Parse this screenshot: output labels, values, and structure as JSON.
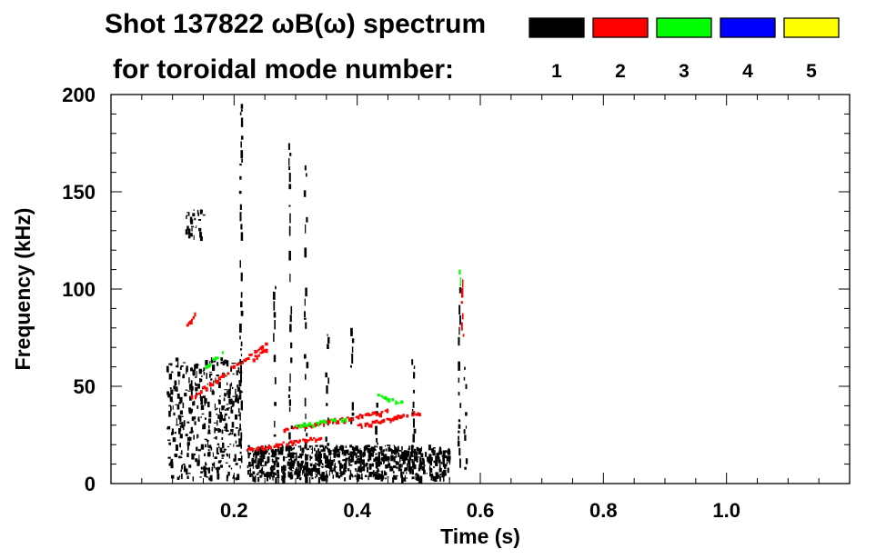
{
  "chart_data": {
    "type": "heatmap",
    "title": "Shot 137822 ωB(ω) spectrum",
    "subtitle": "for toroidal mode number:",
    "xlabel": "Time (s)",
    "ylabel": "Frequency (kHz)",
    "xlim": [
      0.0,
      1.2
    ],
    "ylim": [
      0,
      200
    ],
    "x_ticks": [
      {
        "value": 0.2,
        "label": "0.2"
      },
      {
        "value": 0.4,
        "label": "0.4"
      },
      {
        "value": 0.6,
        "label": "0.6"
      },
      {
        "value": 0.8,
        "label": "0.8"
      },
      {
        "value": 1.0,
        "label": "1.0"
      }
    ],
    "y_ticks": [
      {
        "value": 0,
        "label": "0"
      },
      {
        "value": 50,
        "label": "50"
      },
      {
        "value": 100,
        "label": "100"
      },
      {
        "value": 150,
        "label": "150"
      },
      {
        "value": 200,
        "label": "200"
      }
    ],
    "legend_position": "top-right",
    "series": [
      {
        "name": "1",
        "color": "#000000"
      },
      {
        "name": "2",
        "color": "#ff0000"
      },
      {
        "name": "3",
        "color": "#00ff00"
      },
      {
        "name": "4",
        "color": "#0000ff"
      },
      {
        "name": "5",
        "color": "#ffff00"
      }
    ],
    "features": [
      {
        "mode": "1",
        "kind": "patch",
        "t": [
          0.22,
          0.55
        ],
        "f": [
          3,
          20
        ],
        "density": 0.6
      },
      {
        "mode": "1",
        "kind": "patch",
        "t": [
          0.09,
          0.21
        ],
        "f": [
          3,
          65
        ],
        "density": 0.22
      },
      {
        "mode": "1",
        "kind": "patch",
        "t": [
          0.12,
          0.15
        ],
        "f": [
          127,
          141
        ],
        "density": 0.3
      },
      {
        "mode": "1",
        "kind": "vline",
        "t": 0.29,
        "f": [
          3,
          175
        ]
      },
      {
        "mode": "1",
        "kind": "vline",
        "t": 0.315,
        "f": [
          3,
          168
        ]
      },
      {
        "mode": "1",
        "kind": "vline",
        "t": 0.265,
        "f": [
          3,
          105
        ]
      },
      {
        "mode": "1",
        "kind": "vline",
        "t": 0.21,
        "f": [
          3,
          200
        ]
      },
      {
        "mode": "1",
        "kind": "vline",
        "t": 0.565,
        "f": [
          3,
          110
        ]
      },
      {
        "mode": "1",
        "kind": "vline",
        "t": 0.575,
        "f": [
          3,
          60
        ]
      },
      {
        "mode": "1",
        "kind": "vline",
        "t": 0.35,
        "f": [
          3,
          80
        ]
      },
      {
        "mode": "1",
        "kind": "vline",
        "t": 0.39,
        "f": [
          3,
          80
        ]
      },
      {
        "mode": "1",
        "kind": "vline",
        "t": 0.49,
        "f": [
          3,
          70
        ]
      },
      {
        "mode": "1",
        "kind": "vline",
        "t": 0.43,
        "f": [
          3,
          45
        ]
      },
      {
        "mode": "2",
        "kind": "curve",
        "t": [
          0.13,
          0.25
        ],
        "f": [
          45,
          72
        ]
      },
      {
        "mode": "2",
        "kind": "curve",
        "t": [
          0.23,
          0.25
        ],
        "f": [
          65,
          70
        ]
      },
      {
        "mode": "2",
        "kind": "curve",
        "t": [
          0.22,
          0.34
        ],
        "f": [
          18,
          24
        ]
      },
      {
        "mode": "2",
        "kind": "curve",
        "t": [
          0.28,
          0.45
        ],
        "f": [
          28,
          38
        ]
      },
      {
        "mode": "2",
        "kind": "curve",
        "t": [
          0.4,
          0.5
        ],
        "f": [
          30,
          37
        ]
      },
      {
        "mode": "2",
        "kind": "curve",
        "t": [
          0.12,
          0.135
        ],
        "f": [
          80,
          88
        ]
      },
      {
        "mode": "2",
        "kind": "vline",
        "t": 0.57,
        "f": [
          75,
          105
        ]
      },
      {
        "mode": "3",
        "kind": "curve",
        "t": [
          0.43,
          0.47
        ],
        "f": [
          46,
          42
        ]
      },
      {
        "mode": "3",
        "kind": "curve",
        "t": [
          0.15,
          0.18
        ],
        "f": [
          60,
          68
        ]
      },
      {
        "mode": "3",
        "kind": "curve",
        "t": [
          0.3,
          0.38
        ],
        "f": [
          30,
          34
        ]
      },
      {
        "mode": "3",
        "kind": "vline",
        "t": 0.566,
        "f": [
          95,
          110
        ]
      }
    ]
  }
}
